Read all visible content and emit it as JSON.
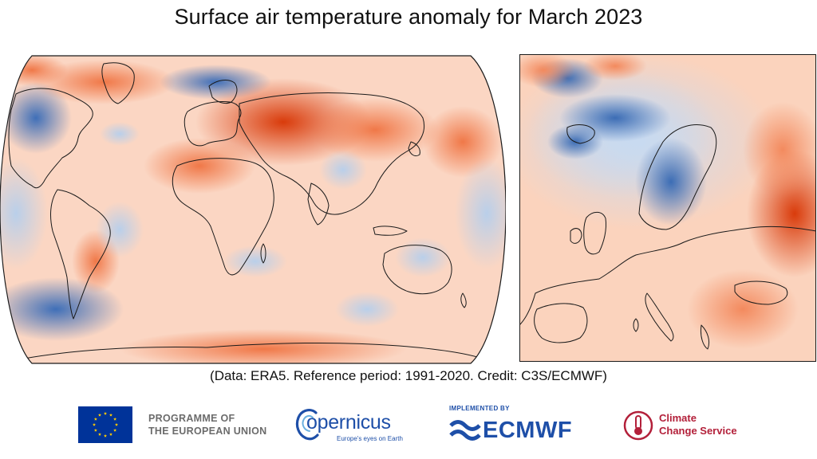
{
  "title": "Surface air temperature anomaly for March 2023",
  "caption": "(Data: ERA5.  Reference period: 1991-2020.  Credit: C3S/ECMWF)",
  "maps": {
    "world": {
      "name": "global",
      "colors": {
        "warm": "#d93b0b",
        "mid_warm": "#f8b896",
        "pale": "#fde7dc",
        "pale_cool": "#e2ecf8",
        "cool": "#4d7fc4",
        "dark_cool": "#2a5aa3",
        "land_outline": "#1a1a1a"
      }
    },
    "europe": {
      "name": "europe"
    }
  },
  "logos": {
    "eu_line1": "PROGRAMME OF",
    "eu_line2": "THE EUROPEAN UNION",
    "copernicus_word": "opernicus",
    "copernicus_c": "C",
    "copernicus_tagline": "Europe's eyes on Earth",
    "ecmwf_implemented": "IMPLEMENTED BY",
    "ecmwf_word": "ECMWF",
    "c3s_line1": "Climate",
    "c3s_line2": "Change Service",
    "eu_color": "#003399",
    "eu_star_color": "#ffcc00",
    "copernicus_color": "#1e4fa8",
    "c3s_color": "#b3203a"
  }
}
